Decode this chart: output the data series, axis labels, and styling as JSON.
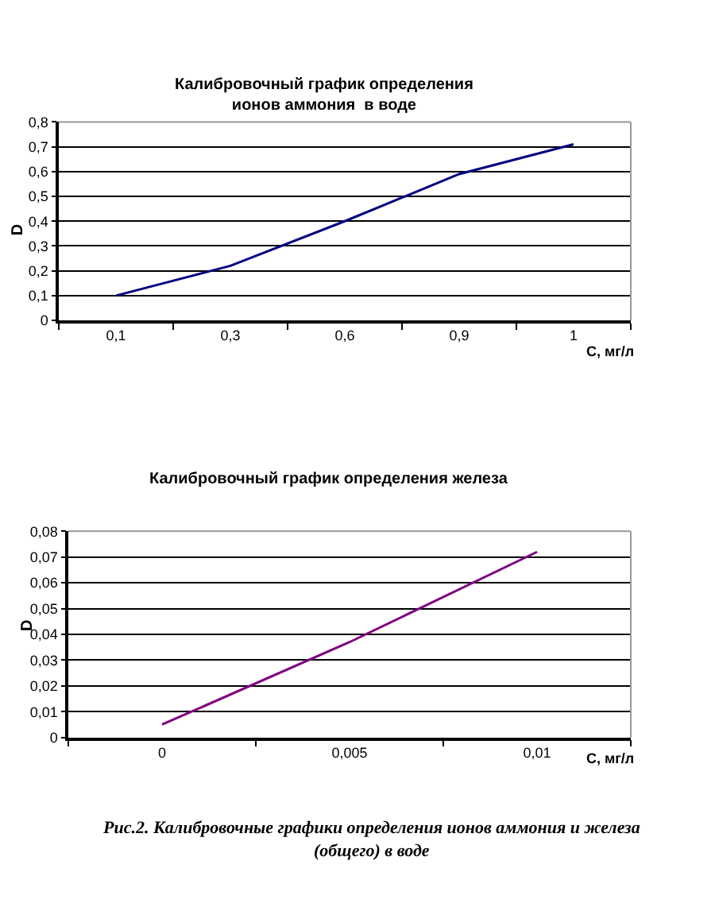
{
  "chart_data": [
    {
      "type": "line",
      "title": "Калибровочный график определения\nионов аммония  в воде",
      "xlabel": "C, мг/л",
      "ylabel": "D",
      "categories": [
        "0,1",
        "0,3",
        "0,6",
        "0,9",
        "1"
      ],
      "series": [
        {
          "color": "#000080",
          "values": [
            0.1,
            0.22,
            0.4,
            0.59,
            0.71
          ]
        }
      ],
      "ylim": [
        0,
        0.8
      ],
      "yticks": [
        {
          "value": 0,
          "label": "0"
        },
        {
          "value": 0.1,
          "label": "0,1"
        },
        {
          "value": 0.2,
          "label": "0,2"
        },
        {
          "value": 0.3,
          "label": "0,3"
        },
        {
          "value": 0.4,
          "label": "0,4"
        },
        {
          "value": 0.5,
          "label": "0,5"
        },
        {
          "value": 0.6,
          "label": "0,6"
        },
        {
          "value": 0.7,
          "label": "0,7"
        },
        {
          "value": 0.8,
          "label": "0,8"
        }
      ],
      "grid": "y"
    },
    {
      "type": "line",
      "title": "Калибровочный график определения железа",
      "xlabel": "C, мг/л",
      "ylabel": "D",
      "categories": [
        "0",
        "0,005",
        "0,01"
      ],
      "series": [
        {
          "color": "#800080",
          "values": [
            0.005,
            0.037,
            0.072
          ]
        }
      ],
      "ylim": [
        0,
        0.08
      ],
      "yticks": [
        {
          "value": 0,
          "label": "0"
        },
        {
          "value": 0.01,
          "label": "0,01"
        },
        {
          "value": 0.02,
          "label": "0,02"
        },
        {
          "value": 0.03,
          "label": "0,03"
        },
        {
          "value": 0.04,
          "label": "0,04"
        },
        {
          "value": 0.05,
          "label": "0,05"
        },
        {
          "value": 0.06,
          "label": "0,06"
        },
        {
          "value": 0.07,
          "label": "0,07"
        },
        {
          "value": 0.08,
          "label": "0,08"
        }
      ],
      "grid": "y",
      "annotations": [
        "Рис.2. Калибровочные графики определения ионов аммония и железа\n(общего) в воде"
      ]
    }
  ]
}
